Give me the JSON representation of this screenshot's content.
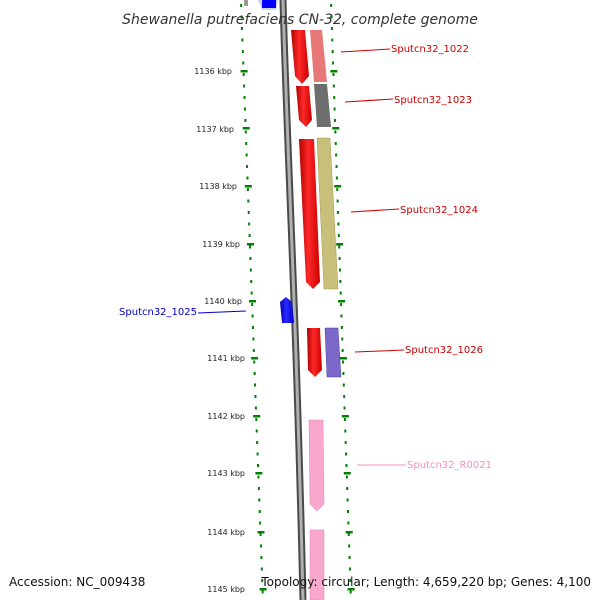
{
  "title": "Shewanella putrefaciens CN-32, complete genome",
  "footer": {
    "accession": "Accession: NC_009438",
    "summary": "Topology: circular; Length: 4,659,220 bp; Genes: 4,100"
  },
  "scale": {
    "unit": "kbp",
    "ticks": [
      "1136 kbp",
      "1137 kbp",
      "1138 kbp",
      "1139 kbp",
      "1140 kbp",
      "1141 kbp",
      "1142 kbp",
      "1143 kbp",
      "1144 kbp",
      "1145 kbp"
    ]
  },
  "genes": [
    {
      "label": "Sputcn32_1022",
      "strand": "forward",
      "function_color": "#e87878",
      "label_color": "#cc0000"
    },
    {
      "label": "Sputcn32_1023",
      "strand": "forward",
      "function_color": "#6e6e6e",
      "label_color": "#cc0000"
    },
    {
      "label": "Sputcn32_1024",
      "strand": "forward",
      "function_color": "#c8c07a",
      "label_color": "#cc0000"
    },
    {
      "label": "Sputcn32_1025",
      "strand": "reverse",
      "function_color": "#0000ff",
      "label_color": "#0000cc"
    },
    {
      "label": "Sputcn32_1026",
      "strand": "forward",
      "function_color": "#7b68c8",
      "label_color": "#cc0000"
    },
    {
      "label": "Sputcn32_R0021",
      "strand": "forward",
      "function_color": "#f4a0c8",
      "label_color": "#f090c0"
    }
  ],
  "colors": {
    "forward_cds": "#ff0000",
    "reverse_cds": "#0000ff",
    "rna": "#f8a8cc",
    "backbone": "#7f7f7f",
    "ticks": "#008000"
  }
}
